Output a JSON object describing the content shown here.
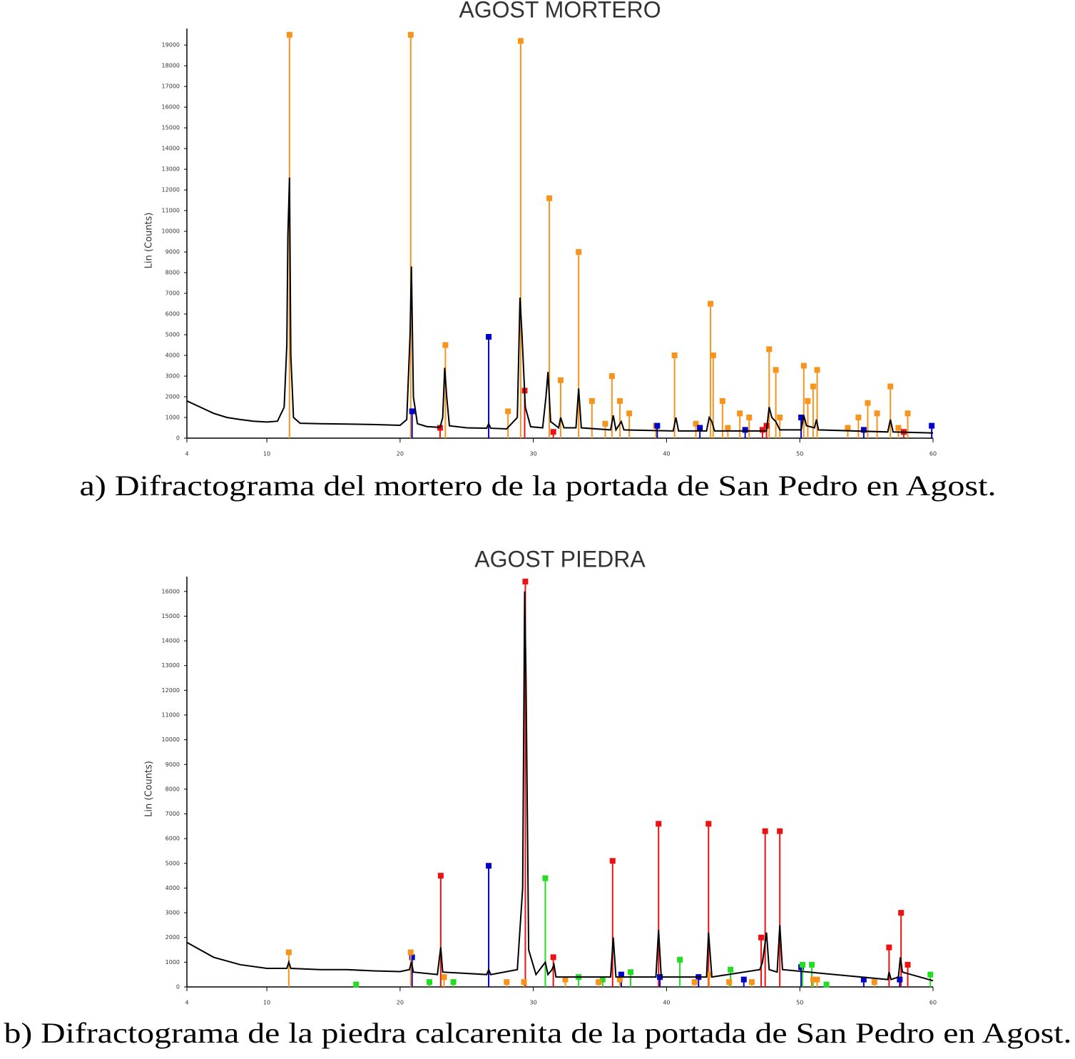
{
  "chart_data": [
    {
      "type": "line",
      "title": "AGOST MORTERO",
      "ylabel": "Lin (Counts)",
      "caption": "a) Difractograma del mortero de la portada de San Pedro en Agost.",
      "xlim": [
        4,
        60
      ],
      "ylim": [
        0,
        19800
      ],
      "xticks": [
        4,
        10,
        20,
        30,
        40,
        50,
        60
      ],
      "yticks": [
        0,
        1000,
        2000,
        3000,
        4000,
        5000,
        6000,
        7000,
        8000,
        9000,
        10000,
        11000,
        12000,
        13000,
        14000,
        15000,
        16000,
        17000,
        18000,
        19000
      ],
      "series": [
        {
          "color": "#000000",
          "x": [
            4,
            5,
            6,
            7,
            8,
            9,
            10,
            10.8,
            11.3,
            11.5,
            11.58,
            11.7,
            11.8,
            12.0,
            12.5,
            14,
            16,
            18,
            20,
            20.5,
            20.75,
            20.85,
            21.0,
            21.3,
            22,
            23,
            23.2,
            23.35,
            23.5,
            23.7,
            25,
            26.5,
            26.65,
            26.8,
            28,
            28.8,
            29.0,
            29.15,
            29.4,
            29.8,
            30.7,
            30.95,
            31.1,
            31.3,
            31.9,
            32.05,
            32.3,
            33.2,
            33.4,
            33.6,
            35.8,
            36.0,
            36.2,
            36.6,
            36.8,
            40.5,
            40.7,
            40.9,
            43.0,
            43.2,
            43.4,
            43.6,
            47.5,
            47.7,
            47.9,
            48.2,
            48.5,
            50.1,
            50.3,
            50.5,
            51.1,
            51.25,
            51.4,
            56.6,
            56.8,
            57.0,
            60
          ],
          "values": [
            1800,
            1500,
            1200,
            1000,
            900,
            820,
            780,
            820,
            1500,
            4500,
            9800,
            12600,
            4000,
            1000,
            720,
            700,
            680,
            660,
            620,
            900,
            5000,
            8300,
            2000,
            700,
            560,
            520,
            1000,
            3400,
            2000,
            600,
            500,
            480,
            700,
            480,
            450,
            1000,
            6800,
            5000,
            1500,
            550,
            500,
            2000,
            3200,
            800,
            500,
            1000,
            500,
            500,
            2400,
            500,
            400,
            1100,
            400,
            800,
            400,
            350,
            1000,
            350,
            350,
            1000,
            800,
            350,
            350,
            1500,
            1000,
            800,
            400,
            400,
            1100,
            600,
            500,
            900,
            400,
            300,
            900,
            300,
            250
          ]
        }
      ],
      "sticks": [
        {
          "color": "#f7941d",
          "x": [
            11.7,
            20.8,
            23.4,
            28.1,
            29.05,
            31.2,
            32.05,
            33.4,
            34.4,
            35.4,
            35.9,
            36.5,
            37.2,
            39.2,
            40.6,
            42.2,
            43.3,
            43.5,
            44.2,
            44.6,
            45.5,
            46.2,
            47.7,
            48.2,
            48.5,
            50.3,
            50.6,
            51.0,
            51.3,
            53.6,
            54.4,
            55.1,
            55.8,
            56.8,
            57.4,
            58.1
          ],
          "values": [
            19500,
            19500,
            4500,
            1300,
            19200,
            11600,
            2800,
            9000,
            1800,
            700,
            3000,
            1800,
            1200,
            600,
            4000,
            700,
            6500,
            4000,
            1800,
            500,
            1200,
            1000,
            4300,
            3300,
            1000,
            3500,
            1800,
            2500,
            3300,
            500,
            1000,
            1700,
            1200,
            2500,
            500,
            1200
          ]
        },
        {
          "color": "#0000cc",
          "x": [
            20.9,
            26.65,
            39.3,
            42.5,
            45.9,
            50.1,
            54.8,
            59.9
          ],
          "values": [
            1300,
            4900,
            600,
            500,
            400,
            1000,
            400,
            600
          ]
        },
        {
          "color": "#ee1111",
          "x": [
            23.0,
            29.35,
            31.5,
            47.2,
            47.5,
            57.8
          ],
          "values": [
            500,
            2300,
            300,
            400,
            600,
            300
          ]
        }
      ]
    },
    {
      "type": "line",
      "title": "AGOST PIEDRA",
      "ylabel": "Lin (Counts)",
      "caption": "b) Difractograma de la piedra calcarenita de la portada de San Pedro en Agost.",
      "xlim": [
        4,
        60
      ],
      "ylim": [
        0,
        16600
      ],
      "xticks": [
        4,
        10,
        20,
        30,
        40,
        50,
        60
      ],
      "yticks": [
        0,
        1000,
        2000,
        3000,
        4000,
        5000,
        6000,
        7000,
        8000,
        9000,
        10000,
        11000,
        12000,
        13000,
        14000,
        15000,
        16000
      ],
      "series": [
        {
          "color": "#000000",
          "x": [
            4,
            6,
            8,
            10,
            11.5,
            11.65,
            11.8,
            14,
            16,
            18,
            20,
            20.7,
            20.85,
            21.0,
            22.8,
            23.05,
            23.2,
            26.5,
            26.65,
            26.8,
            28.8,
            29.2,
            29.35,
            29.45,
            29.65,
            30.2,
            30.9,
            31.1,
            31.4,
            31.55,
            31.7,
            35.8,
            36.0,
            36.2,
            39.2,
            39.4,
            39.6,
            43.0,
            43.15,
            43.4,
            47.0,
            47.2,
            47.5,
            47.7,
            48.3,
            48.5,
            48.7,
            56.6,
            56.7,
            56.85,
            57.4,
            57.55,
            57.7,
            60
          ],
          "values": [
            1800,
            1200,
            900,
            750,
            750,
            1000,
            750,
            700,
            700,
            650,
            620,
            700,
            1000,
            600,
            500,
            1600,
            600,
            500,
            700,
            500,
            700,
            4000,
            16000,
            12500,
            1500,
            500,
            1000,
            500,
            700,
            900,
            400,
            400,
            2000,
            400,
            400,
            2300,
            400,
            400,
            2200,
            400,
            700,
            1000,
            2200,
            700,
            600,
            2500,
            700,
            300,
            600,
            300,
            400,
            1200,
            600,
            250
          ]
        }
      ],
      "sticks": [
        {
          "color": "#ee1111",
          "x": [
            23.05,
            29.4,
            31.5,
            35.95,
            39.4,
            43.15,
            47.1,
            47.4,
            48.5,
            56.7,
            57.6,
            58.1
          ],
          "values": [
            4500,
            16400,
            1200,
            5100,
            6600,
            6600,
            2000,
            6300,
            6300,
            1600,
            3000,
            900
          ]
        },
        {
          "color": "#0000cc",
          "x": [
            20.9,
            26.65,
            36.6,
            39.5,
            42.4,
            45.8,
            50.1,
            54.8,
            57.5
          ],
          "values": [
            1200,
            4900,
            500,
            400,
            400,
            300,
            800,
            300,
            300
          ]
        },
        {
          "color": "#22dd22",
          "x": [
            16.7,
            22.2,
            24.0,
            30.9,
            33.4,
            35.2,
            37.3,
            41.0,
            44.8,
            50.2,
            50.9,
            52.0,
            59.8
          ],
          "values": [
            100,
            200,
            200,
            4400,
            400,
            300,
            600,
            1100,
            700,
            900,
            900,
            100,
            500
          ]
        },
        {
          "color": "#f7941d",
          "x": [
            11.65,
            20.8,
            23.3,
            28.0,
            29.3,
            32.4,
            34.9,
            36.5,
            42.1,
            43.2,
            44.7,
            46.4,
            51.0,
            51.3,
            55.6
          ],
          "values": [
            1400,
            1400,
            400,
            200,
            200,
            300,
            200,
            300,
            200,
            500,
            200,
            200,
            300,
            300,
            200
          ]
        }
      ]
    }
  ]
}
